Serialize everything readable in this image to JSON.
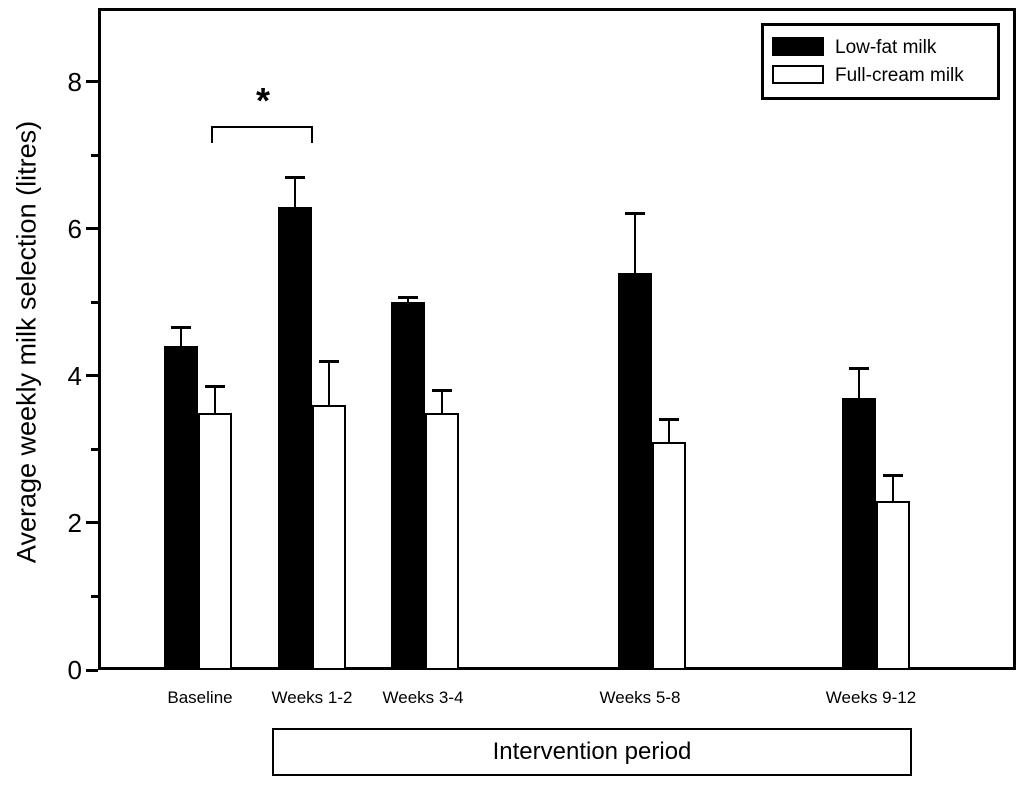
{
  "chart_data": {
    "type": "bar",
    "title": "",
    "categories": [
      "Baseline",
      "Weeks 1-2",
      "Weeks 3-4",
      "Weeks 5-8",
      "Weeks 9-12"
    ],
    "series": [
      {
        "name": "Low-fat milk",
        "color": "#000000",
        "values": [
          4.4,
          6.3,
          5.0,
          5.4,
          3.7
        ],
        "errors_upper": [
          0.25,
          0.4,
          0.07,
          0.8,
          0.4
        ]
      },
      {
        "name": "Full-cream milk",
        "color": "#ffffff",
        "values": [
          3.5,
          3.6,
          3.5,
          3.1,
          2.3
        ],
        "errors_upper": [
          0.35,
          0.6,
          0.3,
          0.3,
          0.35
        ]
      }
    ],
    "xlabel": "Intervention period",
    "ylabel": "Average weekly milk selection (litres)",
    "ylim": [
      0,
      9
    ],
    "yticks_major": [
      0,
      2,
      4,
      6,
      8
    ],
    "yticks_minor": [
      1,
      3,
      5,
      7
    ],
    "grid": false,
    "legend_position": "top-right",
    "error_bars": "upper-only",
    "annotation": {
      "symbol": "*",
      "significance_between": [
        "Baseline (Low-fat milk)",
        "Weeks 1-2 (Low-fat milk)"
      ]
    }
  }
}
